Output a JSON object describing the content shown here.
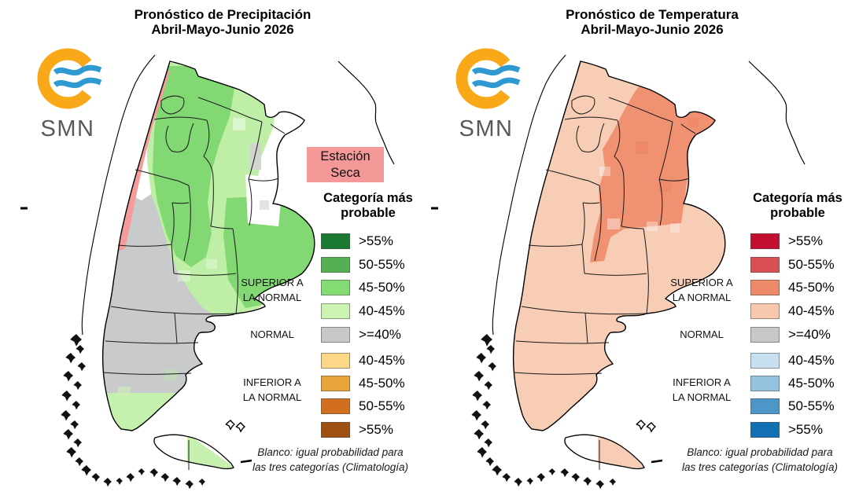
{
  "app": {
    "background": "#FFFFFF"
  },
  "logo": {
    "text": "SMN",
    "orange": "#F9A818",
    "blue": "#2F9AD1",
    "text_color": "#58595B"
  },
  "footnote": {
    "line1": "Blanco: igual probabilidad para",
    "line2": "las tres categorías (Climatología)"
  },
  "legend_groups": [
    {
      "line1": "SUPERIOR A",
      "line2": "LA NORMAL"
    },
    {
      "line1": "NORMAL",
      "line2": ""
    },
    {
      "line1": "INFERIOR A",
      "line2": "LA NORMAL"
    }
  ],
  "panels": [
    {
      "id": "precipitation",
      "title1": "Pronóstico de Precipitación",
      "title2": "Abril-Mayo-Junio 2026",
      "legend_title1": "Categoría más",
      "legend_title2": "probable",
      "legend_rows": [
        {
          "label": ">55%",
          "color": "#1B7A31"
        },
        {
          "label": "50-55%",
          "color": "#55B054"
        },
        {
          "label": "45-50%",
          "color": "#83DB74"
        },
        {
          "label": "40-45%",
          "color": "#CDF3B3"
        },
        {
          "label": ">=40%",
          "color": "#C8C8C8"
        },
        {
          "label": "40-45%",
          "color": "#FCD788"
        },
        {
          "label": "45-50%",
          "color": "#E9A33B"
        },
        {
          "label": "50-55%",
          "color": "#D26F1E"
        },
        {
          "label": ">55%",
          "color": "#9D5012"
        }
      ],
      "map_label": {
        "line1": "Estación",
        "line2": "Seca",
        "bg": "#F49898"
      },
      "map_colors": {
        "base": "#FFFFFF",
        "light": "#BFEFA6",
        "medium": "#82D973",
        "gray": "#C9CACB",
        "pink": "#F59B9B",
        "south": "#C6F0AE"
      }
    },
    {
      "id": "temperature",
      "title1": "Pronóstico de Temperatura",
      "title2": "Abril-Mayo-Junio 2026",
      "legend_title1": "Categoría más",
      "legend_title2": "probable",
      "legend_rows": [
        {
          "label": ">55%",
          "color": "#C30E2F"
        },
        {
          "label": "50-55%",
          "color": "#D94F52"
        },
        {
          "label": "45-50%",
          "color": "#EF8A68"
        },
        {
          "label": "40-45%",
          "color": "#F7C8AD"
        },
        {
          "label": ">=40%",
          "color": "#C8C8C8"
        },
        {
          "label": "40-45%",
          "color": "#C7E0F1"
        },
        {
          "label": "45-50%",
          "color": "#93C3DF"
        },
        {
          "label": "50-55%",
          "color": "#4D96C8"
        },
        {
          "label": ">55%",
          "color": "#1070B1"
        }
      ],
      "map_colors": {
        "base": "#F7CDB5",
        "salmon": "#F09272",
        "white": "#FFFFFF"
      }
    }
  ]
}
